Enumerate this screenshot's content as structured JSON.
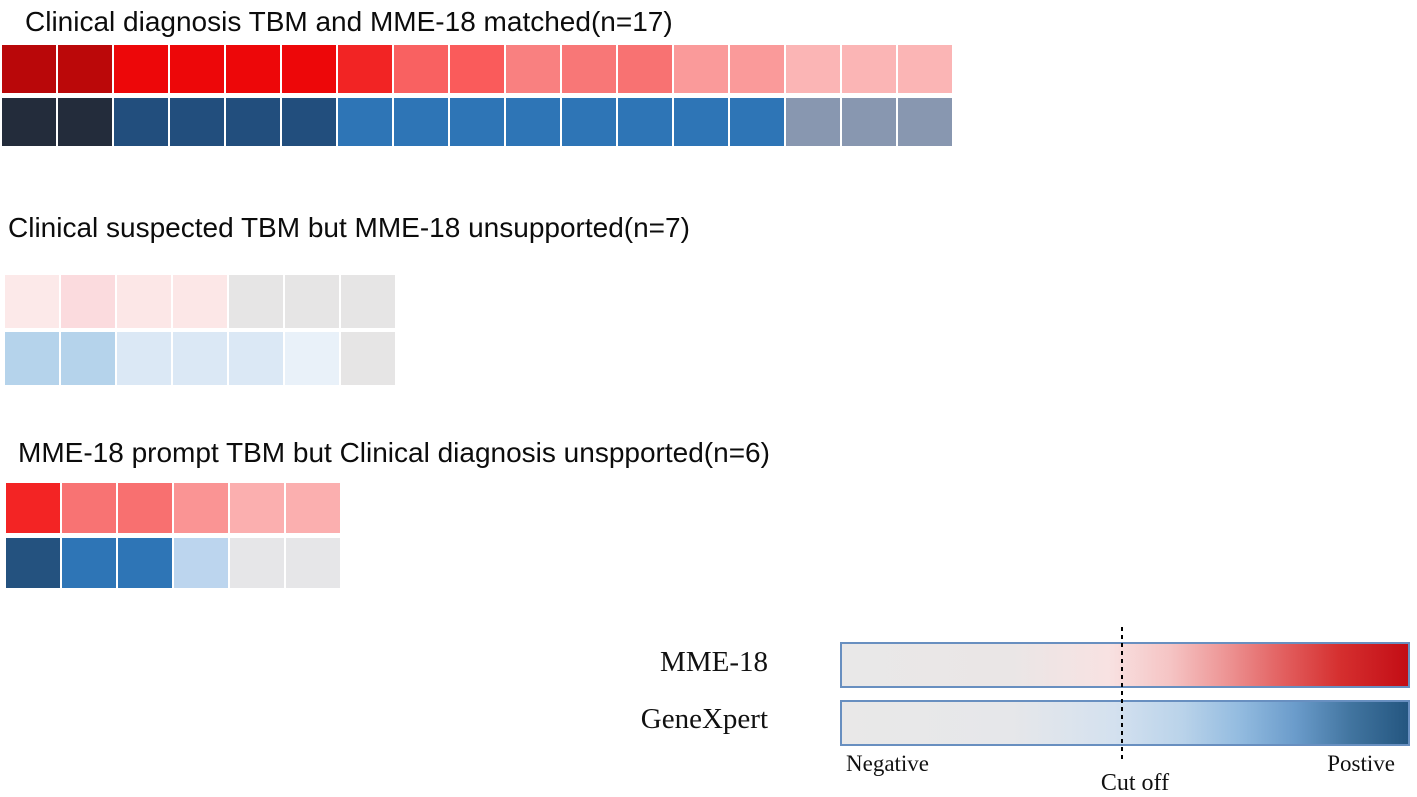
{
  "page": {
    "background": "#ffffff"
  },
  "chart_data": {
    "type": "heatmap",
    "groups": [
      {
        "title": "Clinical diagnosis TBM and MME-18 matched(n=17)",
        "n": 17,
        "rows": [
          {
            "name": "MME-18",
            "scale": "red",
            "cell_colors": [
              "#B90709",
              "#BB0809",
              "#ED0709",
              "#ED0709",
              "#ED0709",
              "#ED0709",
              "#F22424",
              "#F96161",
              "#FA5B5B",
              "#F98080",
              "#F87777",
              "#F87272",
              "#FA9A9A",
              "#FA9A9A",
              "#FBB5B5",
              "#FBB5B5",
              "#FBB5B5"
            ]
          },
          {
            "name": "GeneXpert",
            "scale": "blue",
            "cell_colors": [
              "#232C3B",
              "#232C3B",
              "#224E7D",
              "#224E7D",
              "#224E7D",
              "#224E7D",
              "#2E75B6",
              "#2E75B6",
              "#2E75B6",
              "#2E75B6",
              "#2E75B6",
              "#2E75B6",
              "#2E75B6",
              "#2E75B6",
              "#8897B0",
              "#8897B0",
              "#8897B0"
            ]
          }
        ]
      },
      {
        "title": "Clinical suspected TBM but MME-18 unsupported(n=7)",
        "n": 7,
        "rows": [
          {
            "name": "MME-18",
            "scale": "red",
            "cell_colors": [
              "#FCE9E9",
              "#FBDBDE",
              "#FCE7E7",
              "#FCE7E7",
              "#E6E5E5",
              "#E6E5E5",
              "#E6E5E5"
            ]
          },
          {
            "name": "GeneXpert",
            "scale": "blue",
            "cell_colors": [
              "#B5D3EB",
              "#B5D3EB",
              "#DBE8F5",
              "#DBE8F5",
              "#DBE8F5",
              "#E9F1F9",
              "#E6E5E5"
            ]
          }
        ]
      },
      {
        "title": "MME-18 prompt TBM but Clinical diagnosis unspported(n=6)",
        "n": 6,
        "rows": [
          {
            "name": "MME-18",
            "scale": "red",
            "cell_colors": [
              "#F32424",
              "#F87373",
              "#F87070",
              "#FA9494",
              "#FBAFAF",
              "#FBAFAF"
            ]
          },
          {
            "name": "GeneXpert",
            "scale": "blue",
            "cell_colors": [
              "#24527F",
              "#2E75B6",
              "#2E75B6",
              "#BCD5EE",
              "#E6E6E8",
              "#E6E6E8"
            ]
          }
        ]
      }
    ],
    "legend": {
      "bars": [
        {
          "label": "MME-18",
          "gradient_stops": [
            "#E9E8E8 0%",
            "#EAE6E6 30%",
            "#F8E2E2 47%",
            "#F5C4C4 58%",
            "#ED9494 68%",
            "#E25F5F 78%",
            "#D52F2F 88%",
            "#C30D15 100%"
          ]
        },
        {
          "label": "GeneXpert",
          "gradient_stops": [
            "#E9E8E8 0%",
            "#E6E7EA 30%",
            "#D4E1EF 48%",
            "#BAD3EA 60%",
            "#94BCE0 70%",
            "#6B9CCB 80%",
            "#41749F 90%",
            "#245680 100%"
          ]
        }
      ],
      "negative_label": "Negative",
      "cutoff_label": "Cut off",
      "positive_label": "Postive",
      "bar_border_color": "#688FC0",
      "cutoff_line_color": "#000000",
      "cutoff_position_pct": 50
    }
  }
}
